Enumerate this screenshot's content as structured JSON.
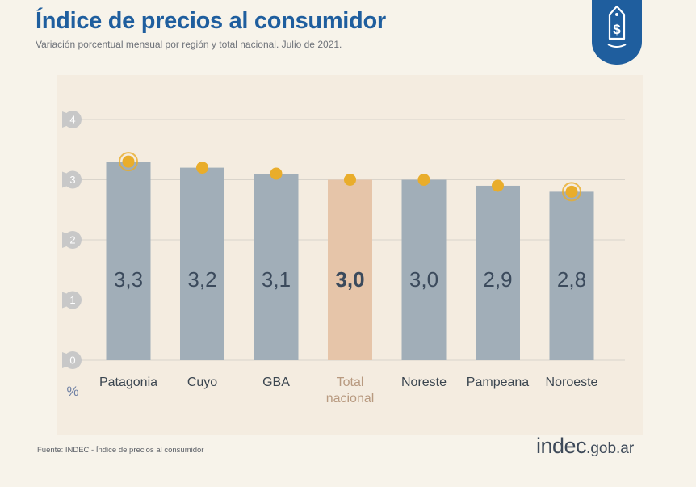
{
  "header": {
    "title": "Índice de precios al consumidor",
    "subtitle": "Variación porcentual mensual por región y total nacional. Julio de 2021."
  },
  "icons": {
    "badge": "price-tag-dollar-icon"
  },
  "colors": {
    "title": "#1f5e9e",
    "bar": "#a1aeb8",
    "highlight_bar": "#e6c5a9",
    "dot": "#e9ad2b",
    "label": "#3b4a5c",
    "badge": "#1f5e9e"
  },
  "chart_data": {
    "type": "bar",
    "categories": [
      "Patagonia",
      "Cuyo",
      "GBA",
      "Total nacional",
      "Noreste",
      "Pampeana",
      "Noroeste"
    ],
    "values": [
      3.3,
      3.2,
      3.1,
      3.0,
      3.0,
      2.9,
      2.8
    ],
    "value_labels": [
      "3,3",
      "3,2",
      "3,1",
      "3,0",
      "3,0",
      "2,9",
      "2,8"
    ],
    "highlight_category": "Total nacional",
    "ring_markers": [
      "Patagonia",
      "Noroeste"
    ],
    "yticks": [
      "0",
      "1",
      "2",
      "3",
      "4"
    ],
    "ylim": [
      0,
      4
    ],
    "ylabel": "%",
    "grid": true,
    "legend": "none"
  },
  "footer": {
    "source": "Fuente: INDEC - Índice de precios al consumidor",
    "logo_main": "indec",
    "logo_suffix": ".gob.ar"
  }
}
